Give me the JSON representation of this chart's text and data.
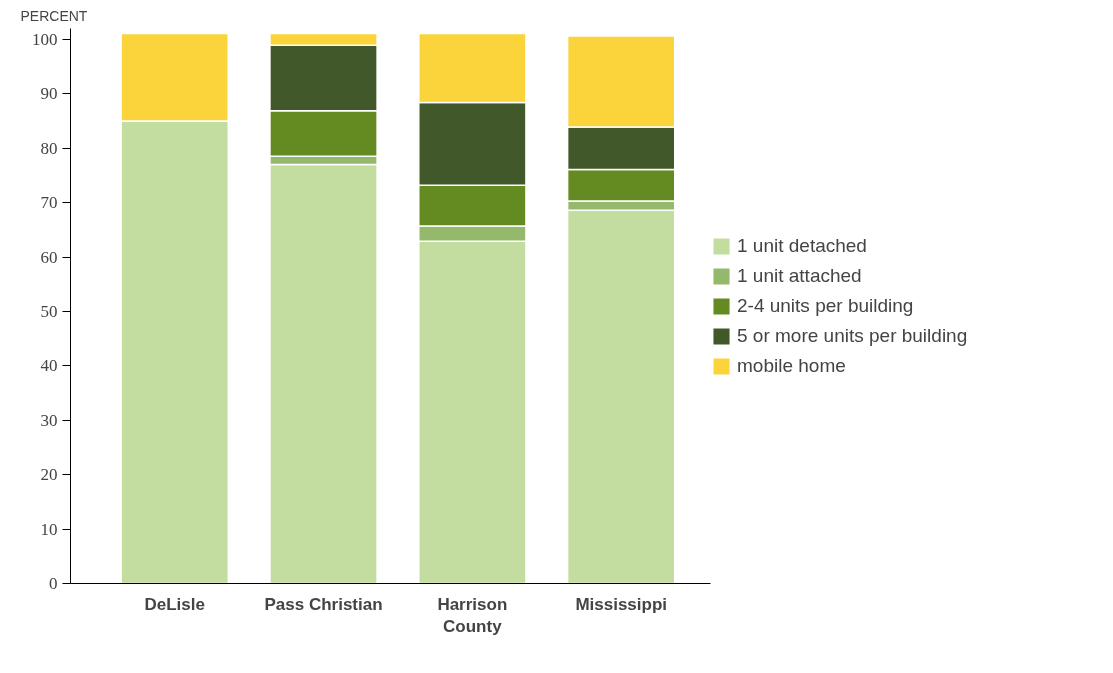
{
  "chart_data": {
    "type": "bar",
    "stacked": true,
    "ylabel": "PERCENT",
    "categories": [
      "DeLisle",
      "Pass Christian",
      "Harrison County",
      "Mississippi"
    ],
    "series": [
      {
        "name": "1 unit detached",
        "color": "#c2dd9f",
        "values": [
          85.0,
          77.0,
          62.9,
          68.6
        ]
      },
      {
        "name": "1 unit attached",
        "color": "#94b86c",
        "values": [
          0,
          1.5,
          2.8,
          1.7
        ]
      },
      {
        "name": "2-4 units per building",
        "color": "#648a22",
        "values": [
          0,
          8.4,
          7.5,
          5.8
        ]
      },
      {
        "name": "5 or more units per building",
        "color": "#41592a",
        "values": [
          0,
          12.0,
          15.2,
          7.8
        ]
      },
      {
        "name": "mobile home",
        "color": "#fad43a",
        "values": [
          16.1,
          2.2,
          12.7,
          16.7
        ]
      }
    ],
    "ylim": [
      0,
      102
    ],
    "yticks": [
      0,
      10,
      20,
      30,
      40,
      50,
      60,
      70,
      80,
      90,
      100
    ],
    "grid": false,
    "legend": "right"
  }
}
